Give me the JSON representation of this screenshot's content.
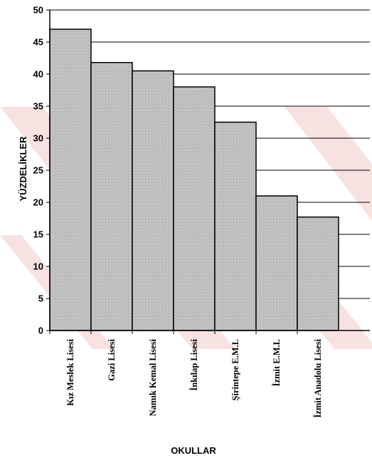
{
  "chart_data": {
    "type": "bar",
    "title": "",
    "xlabel": "OKULLAR",
    "ylabel": "YÜZDELİKLER",
    "categories": [
      "Kız Meslek Lisesi",
      "Gazi Lisesi",
      "Namık Kemal Lisesi",
      "İnkılap Lisesi",
      "Şirintepe E.M.L",
      "İzmit E.M.L",
      "İzmit Anadolu Lisesi"
    ],
    "values": [
      47,
      41.8,
      40.5,
      38,
      32.5,
      21,
      17.7
    ],
    "ylim": [
      0,
      50
    ],
    "yticks": [
      "0",
      "5",
      "10",
      "15",
      "20",
      "25",
      "30",
      "35",
      "40",
      "45",
      "50"
    ],
    "grid": true,
    "legend": "none",
    "colors": {
      "bar_fill": "#bdbdbd",
      "bar_stroke": "#000000",
      "watermark": "#f3c9c9"
    }
  }
}
